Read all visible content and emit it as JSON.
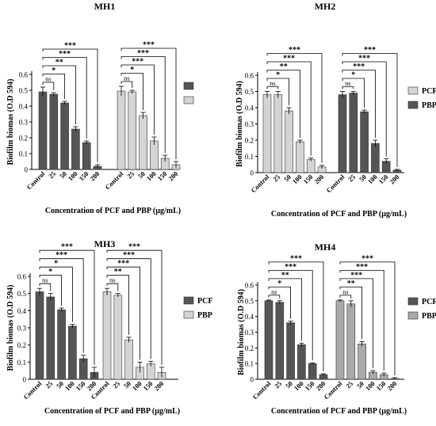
{
  "chart_data": [
    {
      "type": "bar",
      "title": "MH1",
      "xlabel": "Concentration of PCF and PBP (µg/mL)",
      "ylabel": "Biofilm biomas (O.D 594)",
      "ylim": [
        0,
        0.6
      ],
      "yticks": [
        "0",
        "0.1",
        "0.2",
        "0.3",
        "0.4",
        "0.5",
        "0.6"
      ],
      "grid": false,
      "legend_position": "right",
      "categories": [
        "Control",
        "25",
        "50",
        "100",
        "150",
        "200"
      ],
      "series": [
        {
          "name": "",
          "color": "#555555",
          "values": [
            0.49,
            0.475,
            0.42,
            0.255,
            0.17,
            0.02
          ],
          "errors": [
            0.03,
            0.01,
            0.01,
            0.015,
            0.01,
            0.01
          ]
        },
        {
          "name": "",
          "color": "#d4d4d4",
          "values": [
            0.495,
            0.49,
            0.34,
            0.18,
            0.07,
            0.03
          ],
          "errors": [
            0.03,
            0.01,
            0.02,
            0.025,
            0.02,
            0.02
          ]
        }
      ],
      "significance": [
        [
          "ns",
          "*",
          "**",
          "***",
          "***"
        ],
        [
          "ns",
          "*",
          "***",
          "***",
          "***"
        ]
      ]
    },
    {
      "type": "bar",
      "title": "MH2",
      "xlabel": "Concentration of PCF and PBP (µg/mL)",
      "ylabel": "Biofilm biomas (O.D 594)",
      "ylim": [
        0,
        0.6
      ],
      "yticks": [
        "0",
        "0.1",
        "0.2",
        "0.3",
        "0.4",
        "0.5",
        "0.6"
      ],
      "grid": false,
      "legend_position": "right",
      "categories": [
        "Control",
        "25",
        "50",
        "100",
        "150",
        "200"
      ],
      "series": [
        {
          "name": "PCF",
          "color": "#d4d4d4",
          "values": [
            0.48,
            0.48,
            0.38,
            0.19,
            0.08,
            0.035
          ],
          "errors": [
            0.02,
            0.02,
            0.02,
            0.01,
            0.01,
            0.01
          ]
        },
        {
          "name": "PBP",
          "color": "#555555",
          "values": [
            0.48,
            0.49,
            0.375,
            0.18,
            0.07,
            0.015
          ],
          "errors": [
            0.02,
            0.01,
            0.01,
            0.02,
            0.015,
            0.005
          ]
        }
      ],
      "significance": [
        [
          "ns",
          "*",
          "**",
          "***",
          "***"
        ],
        [
          "ns",
          "*",
          "***",
          "***",
          "***"
        ]
      ]
    },
    {
      "type": "bar",
      "title": "MH3",
      "xlabel": "Concentration of PCF and PBP (µg/mL)",
      "ylabel": "Biofilm biomas (O.D 594)",
      "ylim": [
        0,
        0.6
      ],
      "yticks": [
        "0",
        "0.1",
        "0.2",
        "0.3",
        "0.4",
        "0.5",
        "0.6"
      ],
      "grid": false,
      "legend_position": "right",
      "categories": [
        "Control",
        "25",
        "50",
        "100",
        "150",
        "200"
      ],
      "series": [
        {
          "name": "PCF",
          "color": "#555555",
          "values": [
            0.51,
            0.48,
            0.405,
            0.31,
            0.12,
            0.04
          ],
          "errors": [
            0.02,
            0.02,
            0.01,
            0.01,
            0.02,
            0.03
          ]
        },
        {
          "name": "PBP",
          "color": "#d4d4d4",
          "values": [
            0.51,
            0.49,
            0.23,
            0.07,
            0.09,
            0.04
          ],
          "errors": [
            0.02,
            0.01,
            0.015,
            0.03,
            0.015,
            0.03
          ]
        }
      ],
      "significance": [
        [
          "ns",
          "*",
          "*",
          "***",
          "***"
        ],
        [
          "ns",
          "**",
          "***",
          "***",
          "***"
        ]
      ]
    },
    {
      "type": "bar",
      "title": "MH4",
      "xlabel": "Concentration of PCF and PBP (µg/mL)",
      "ylabel": "Biofilm biomas (O.D 594)",
      "ylim": [
        0,
        0.6
      ],
      "yticks": [
        "0",
        "0.1",
        "0.2",
        "0.3",
        "0.4",
        "0.5",
        "0.6"
      ],
      "grid": false,
      "legend_position": "right",
      "categories": [
        "Control",
        "25",
        "50",
        "100",
        "150",
        "200"
      ],
      "series": [
        {
          "name": "PCF",
          "color": "#555555",
          "values": [
            0.5,
            0.49,
            0.36,
            0.22,
            0.1,
            0.03
          ],
          "errors": [
            0.005,
            0.01,
            0.01,
            0.01,
            0.005,
            0.005
          ]
        },
        {
          "name": "PBP",
          "color": "#a9a9a9",
          "values": [
            0.5,
            0.48,
            0.225,
            0.045,
            0.03,
            0.005
          ],
          "errors": [
            0.005,
            0.02,
            0.015,
            0.01,
            0.01,
            0.005
          ]
        }
      ],
      "significance": [
        [
          "ns",
          "*",
          "**",
          "***",
          "***"
        ],
        [
          "ns",
          "**",
          "***",
          "***",
          "***"
        ]
      ]
    }
  ]
}
